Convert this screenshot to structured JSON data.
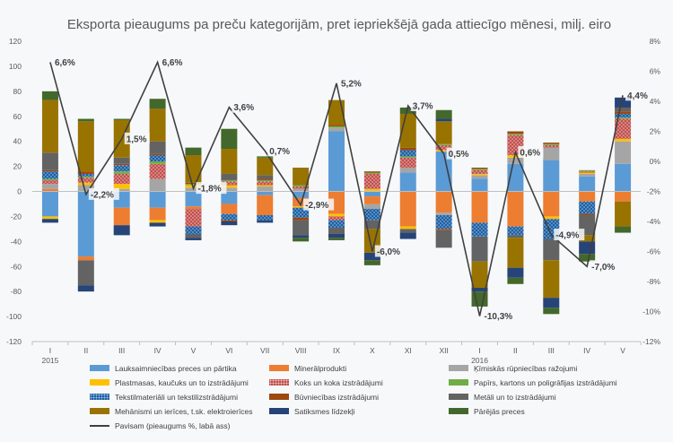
{
  "chart_data": {
    "type": "bar",
    "title": "Eksporta pieaugums pa preču kategorijām, pret iepriekšējā gada attiecīgo mēnesi, milj. eiro",
    "categories": [
      "I",
      "II",
      "III",
      "IV",
      "V",
      "VI",
      "VII",
      "VIII",
      "IX",
      "X",
      "XI",
      "XII",
      "I",
      "II",
      "III",
      "IV",
      "V"
    ],
    "year_labels": [
      {
        "index": 0,
        "label": "2015"
      },
      {
        "index": 12,
        "label": "2016"
      }
    ],
    "ylim": [
      -120,
      120
    ],
    "y_ticks": [
      "120",
      "100",
      "80",
      "60",
      "40",
      "20",
      "0",
      "-20",
      "-40",
      "-60",
      "-80",
      "-100",
      "-120"
    ],
    "y2lim": [
      -12,
      8
    ],
    "y2_ticks": [
      "8%",
      "6%",
      "4%",
      "2%",
      "0%",
      "-2%",
      "-4%",
      "-6%",
      "-8%",
      "-10%",
      "-12%"
    ],
    "grid": false,
    "legend_position": "bottom",
    "series": [
      {
        "name": "Lauksaimniecības preces un pārtika",
        "color": "#5b9bd5",
        "pattern": "solid",
        "values": [
          -20,
          -52,
          -13,
          -13,
          -12,
          -10,
          -3,
          -5,
          48,
          -4,
          15,
          32,
          10,
          22,
          25,
          12,
          22
        ]
      },
      {
        "name": "Minerālprodukti",
        "color": "#ed7d31",
        "pattern": "solid",
        "values": [
          2,
          -3,
          -14,
          -10,
          -2,
          -8,
          -16,
          -7,
          -18,
          -6,
          -28,
          -17,
          -25,
          -28,
          -20,
          -8,
          -8
        ]
      },
      {
        "name": "Ķīmiskās rūpniecības ražojumi",
        "color": "#a5a5a5",
        "pattern": "solid",
        "values": [
          4,
          5,
          2,
          10,
          3,
          3,
          4,
          2,
          3,
          -4,
          4,
          -2,
          3,
          5,
          10,
          2,
          18
        ]
      },
      {
        "name": "Plastmasas, kaučuks un to izstrādājumi",
        "color": "#ffc000",
        "pattern": "solid",
        "values": [
          -2,
          2,
          4,
          -2,
          2,
          2,
          1,
          -1,
          -2,
          2,
          -2,
          1,
          1,
          2,
          -2,
          1,
          2
        ]
      },
      {
        "name": "Koks un koka izstrādājumi",
        "color": "#c0504d",
        "pattern": "dots",
        "values": [
          3,
          4,
          8,
          12,
          -14,
          3,
          3,
          2,
          -3,
          12,
          8,
          4,
          3,
          16,
          2,
          1,
          16
        ]
      },
      {
        "name": "Papīrs, kartons un poligrāfijas izstrādājumi",
        "color": "#70ad47",
        "pattern": "solid",
        "values": [
          1,
          1,
          2,
          2,
          1,
          1,
          1,
          1,
          1,
          1,
          1,
          1,
          1,
          1,
          1,
          1,
          1
        ]
      },
      {
        "name": "Tekstilmateriāli un tekstilizstrādājumi",
        "color": "#1f5fa0",
        "pattern": "dots",
        "values": [
          6,
          2,
          5,
          5,
          -6,
          -5,
          -4,
          -8,
          -6,
          -9,
          5,
          -11,
          -11,
          -7,
          -16,
          -10,
          3
        ]
      },
      {
        "name": "Būvniecības izstrādājumi",
        "color": "#9e480e",
        "pattern": "solid",
        "values": [
          1,
          2,
          1,
          1,
          1,
          -1,
          1,
          -2,
          1,
          1,
          2,
          -1,
          1,
          2,
          1,
          -1,
          2
        ]
      },
      {
        "name": "Metāli un to izstrādājumi",
        "color": "#636363",
        "pattern": "solid",
        "values": [
          14,
          -20,
          5,
          10,
          -3,
          5,
          3,
          -12,
          -5,
          -7,
          -3,
          -14,
          -20,
          -2,
          -17,
          -16,
          3
        ]
      },
      {
        "name": "Mehānismi un ierīces, t.sk. elektroierīces",
        "color": "#997300",
        "pattern": "solid",
        "values": [
          42,
          40,
          30,
          26,
          22,
          20,
          14,
          14,
          20,
          -19,
          27,
          18,
          -21,
          -24,
          -30,
          -5,
          -20
        ]
      },
      {
        "name": "Satiksmes līdzekļi",
        "color": "#264478",
        "pattern": "solid",
        "values": [
          -3,
          -5,
          -8,
          -3,
          -2,
          -3,
          -2,
          -2,
          -3,
          -6,
          -5,
          2,
          -3,
          -8,
          -8,
          -10,
          8
        ]
      },
      {
        "name": "Pārējās preces",
        "color": "#43682b",
        "pattern": "solid",
        "values": [
          7,
          2,
          1,
          8,
          6,
          16,
          1,
          -3,
          -2,
          -4,
          5,
          7,
          -12,
          -5,
          -5,
          -6,
          -5
        ]
      }
    ],
    "line_series": {
      "name": "Pavisam (pieaugums %, labā ass)",
      "color": "#404040",
      "values": [
        6.6,
        -2.2,
        1.5,
        6.6,
        -1.8,
        3.6,
        0.7,
        -2.9,
        5.2,
        -6.0,
        3.7,
        0.5,
        -10.3,
        0.6,
        -4.9,
        -7.0,
        4.4
      ],
      "labels": [
        "6,6%",
        "-2,2%",
        "1,5%",
        "6,6%",
        "-1,8%",
        "3,6%",
        "0,7%",
        "-2,9%",
        "5,2%",
        "-6,0%",
        "3,7%",
        "0,5%",
        "-10,3%",
        "0,6%",
        "-4,9%",
        "-7,0%",
        "4,4%"
      ]
    }
  }
}
